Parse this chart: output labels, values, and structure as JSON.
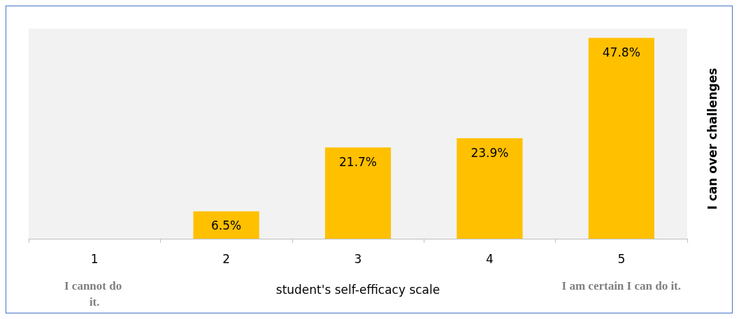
{
  "chart_data": {
    "type": "bar",
    "categories": [
      "1",
      "2",
      "3",
      "4",
      "5"
    ],
    "values": [
      null,
      6.5,
      21.7,
      23.9,
      47.8
    ],
    "value_labels": [
      null,
      "6.5%",
      "21.7%",
      "23.9%",
      "47.8%"
    ],
    "color": "#ffc000",
    "xlabel": "student's self-efficacy scale",
    "ylabel": "I can over challenges",
    "annotations": [
      "I cannot do it.",
      "I am certain I can do it."
    ]
  }
}
